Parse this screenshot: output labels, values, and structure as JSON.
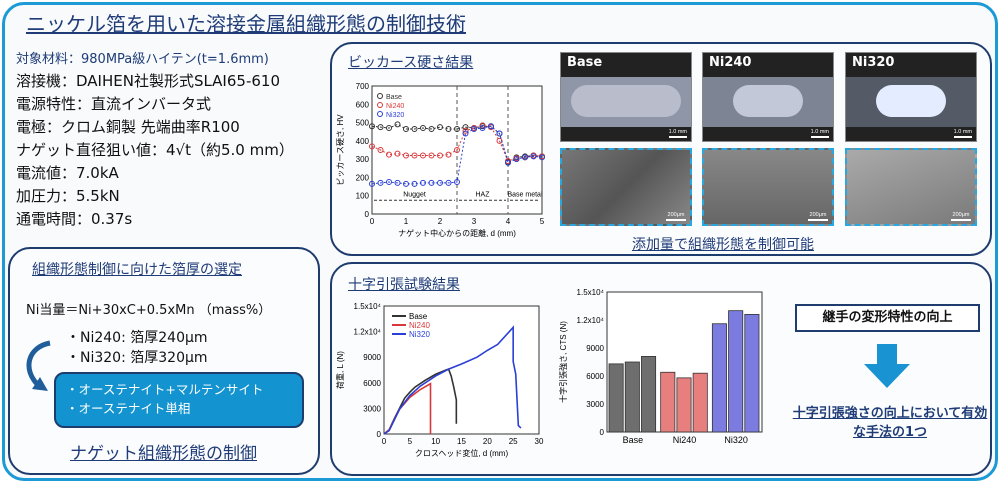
{
  "title": "ニッケル箔を用いた溶接金属組織形態の制御技術",
  "specs": {
    "material": "対象材料：980MPa級ハイテン(t=1.6mm)",
    "lines": [
      "溶接機：DAIHEN社製形式SLAI65-610",
      "電源特性：直流インバータ式",
      "電極：クロム銅製 先端曲率R100",
      "ナゲット直径狙い値：4√t（約5.0 mm）",
      "電流値：7.0kA",
      "加圧力：5.5kN",
      "通電時間：0.37s"
    ]
  },
  "foil": {
    "heading": "組織形態制御に向けた箔厚の選定",
    "formula": "Ni当量＝Ni+30xC+0.5xMn （mass%）",
    "items": [
      "・Ni240: 箔厚240μm",
      "・Ni320: 箔厚320μm"
    ],
    "phases": [
      "・オーステナイト+マルテンサイト",
      "・オーステナイト単相"
    ],
    "conclusion": "ナゲット組織形態の制御"
  },
  "hardness": {
    "heading": "ビッカース硬さ結果",
    "micro_labels": [
      "Base",
      "Ni240",
      "Ni320"
    ],
    "scale_macro": "1.0 mm",
    "scale_micro": "200μm",
    "caption": "添加量で組織形態を制御可能"
  },
  "tensile": {
    "heading": "十字引張試験結果",
    "key": "継手の変形特性の向上",
    "result": "十字引張強さの向上において有効な手法の1つ"
  },
  "colors": {
    "Base": "#333333",
    "Ni240": "#d9383a",
    "Ni320": "#2a3fd6",
    "bar_Base": "#6e6e6e",
    "bar_Ni240": "#e87f7f",
    "bar_Ni320": "#7c7ce0"
  },
  "chart_data": [
    {
      "type": "line",
      "ylabel": "ビッカース硬さ, HV",
      "xlabel": "ナゲット中心からの距離, d (mm)",
      "xlim": [
        0,
        5
      ],
      "ylim": [
        0,
        700
      ],
      "xticks": [
        0,
        1,
        2,
        3,
        4,
        5
      ],
      "yticks": [
        0,
        100,
        200,
        300,
        400,
        500,
        600,
        700
      ],
      "x": [
        0,
        0.25,
        0.5,
        0.75,
        1,
        1.25,
        1.5,
        1.75,
        2,
        2.25,
        2.5,
        2.75,
        3,
        3.25,
        3.5,
        3.75,
        4,
        4.25,
        4.5,
        4.75,
        5
      ],
      "series": [
        {
          "name": "Base",
          "values": [
            480,
            475,
            470,
            490,
            465,
            465,
            470,
            465,
            475,
            465,
            465,
            475,
            470,
            480,
            480,
            440,
            285,
            310,
            315,
            320,
            315
          ]
        },
        {
          "name": "Ni240",
          "values": [
            370,
            350,
            325,
            330,
            320,
            320,
            320,
            320,
            320,
            325,
            350,
            455,
            470,
            485,
            475,
            400,
            290,
            305,
            310,
            320,
            315
          ]
        },
        {
          "name": "Ni320",
          "values": [
            165,
            170,
            175,
            170,
            165,
            165,
            170,
            170,
            170,
            170,
            175,
            440,
            465,
            470,
            480,
            440,
            280,
            300,
            310,
            315,
            310
          ]
        }
      ],
      "regions": [
        {
          "label": "Nugget",
          "from": 0,
          "to": 2.5
        },
        {
          "label": "HAZ",
          "from": 2.5,
          "to": 4
        },
        {
          "label": "Base metal",
          "from": 4,
          "to": 5
        }
      ]
    },
    {
      "type": "line",
      "ylabel": "荷重, L (N)",
      "xlabel": "クロスヘッド変位, d (mm)",
      "xlim": [
        0,
        30
      ],
      "ylim": [
        0,
        15000
      ],
      "xticks": [
        0,
        5,
        10,
        15,
        20,
        25,
        30
      ],
      "yticks": [
        "0",
        "3000",
        "6000",
        "9000",
        "1.2x10⁴",
        "1.5x10⁴"
      ],
      "series": [
        {
          "name": "Base",
          "points": [
            [
              0,
              0
            ],
            [
              1,
              500
            ],
            [
              2,
              1800
            ],
            [
              3,
              3000
            ],
            [
              4,
              4200
            ],
            [
              5,
              4900
            ],
            [
              6,
              5500
            ],
            [
              8,
              6300
            ],
            [
              10,
              7000
            ],
            [
              12,
              7500
            ],
            [
              12.5,
              7600
            ],
            [
              13,
              6800
            ],
            [
              13.5,
              5500
            ],
            [
              14,
              4000
            ],
            [
              14,
              1200
            ]
          ]
        },
        {
          "name": "Ni240",
          "points": [
            [
              0,
              0
            ],
            [
              1,
              500
            ],
            [
              3,
              2900
            ],
            [
              5,
              4300
            ],
            [
              7,
              5200
            ],
            [
              9,
              5900
            ],
            [
              9,
              0
            ]
          ]
        },
        {
          "name": "Ni320",
          "points": [
            [
              0,
              0
            ],
            [
              1,
              400
            ],
            [
              3,
              2900
            ],
            [
              5,
              4500
            ],
            [
              7,
              5600
            ],
            [
              10,
              6800
            ],
            [
              12.5,
              7600
            ],
            [
              15,
              8200
            ],
            [
              18,
              9000
            ],
            [
              20,
              9800
            ],
            [
              22,
              10500
            ],
            [
              25,
              12500
            ],
            [
              25,
              8500
            ],
            [
              25.5,
              7000
            ],
            [
              26,
              1000
            ],
            [
              26.5,
              700
            ]
          ]
        }
      ]
    },
    {
      "type": "bar",
      "ylabel": "十字引張強さ, CTS (N)",
      "ylim": [
        0,
        15000
      ],
      "yticks": [
        "0",
        "3000",
        "6000",
        "9000",
        "1.2x10⁴",
        "1.5x10⁴"
      ],
      "categories": [
        "Base",
        "Ni240",
        "Ni320"
      ],
      "series": [
        {
          "name": "Base",
          "values": [
            7300,
            7500,
            8100
          ]
        },
        {
          "name": "Ni240",
          "values": [
            6400,
            5800,
            6300
          ]
        },
        {
          "name": "Ni320",
          "values": [
            11600,
            13000,
            12600
          ]
        }
      ]
    }
  ]
}
